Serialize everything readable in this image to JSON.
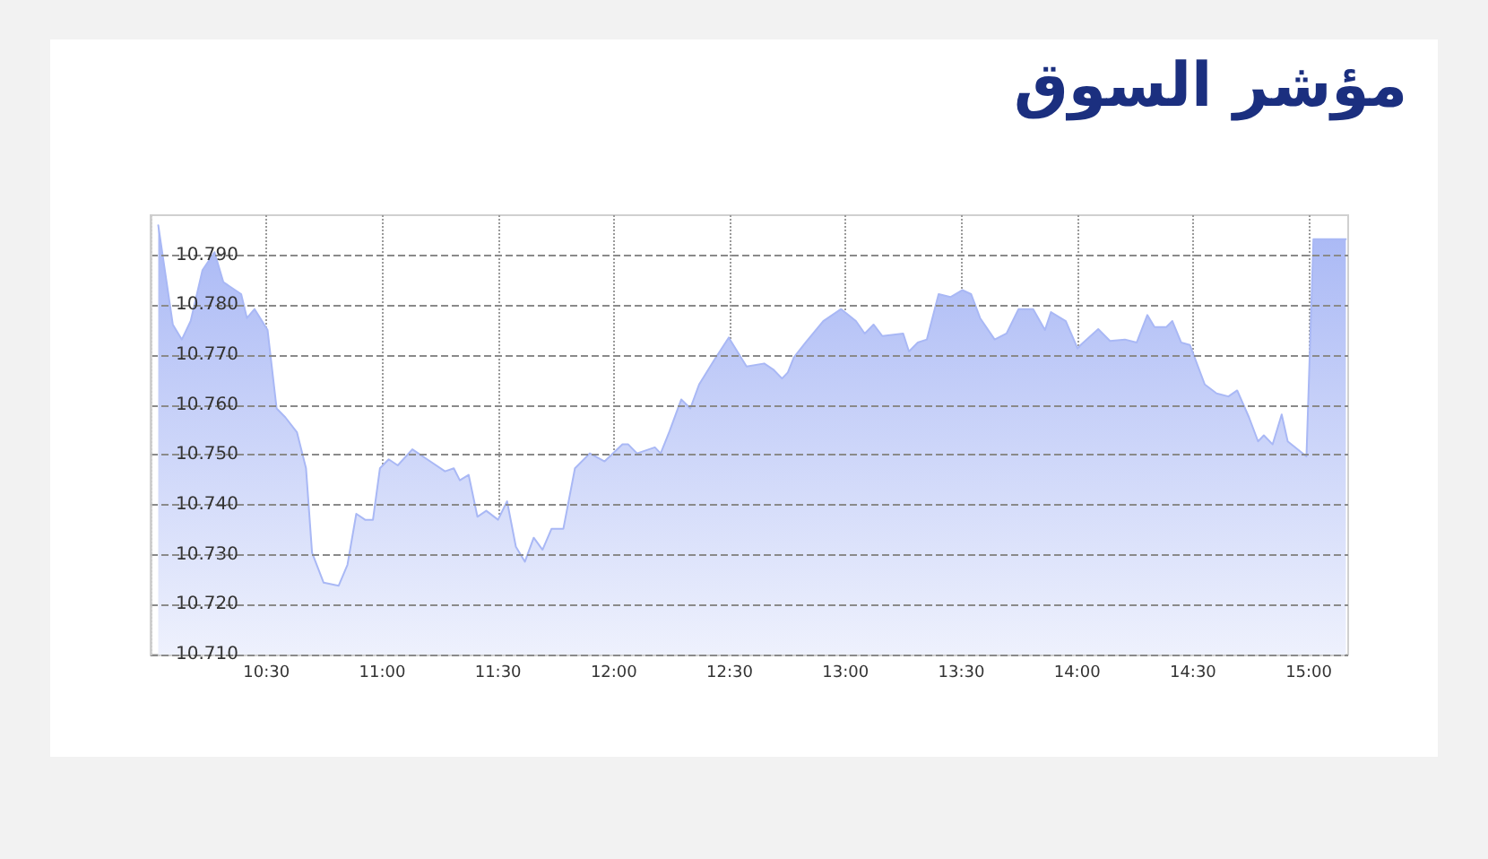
{
  "chart_data": {
    "type": "area",
    "title": "مؤشر السوق",
    "x": [
      10.033,
      10.096,
      10.135,
      10.173,
      10.224,
      10.276,
      10.314,
      10.391,
      10.416,
      10.449,
      10.505,
      10.544,
      10.582,
      10.632,
      10.671,
      10.697,
      10.747,
      10.812,
      10.85,
      10.888,
      10.926,
      10.96,
      10.99,
      11.028,
      11.067,
      11.13,
      11.194,
      11.271,
      11.309,
      11.335,
      11.373,
      11.411,
      11.449,
      11.5,
      11.539,
      11.577,
      11.616,
      11.654,
      11.692,
      11.731,
      11.782,
      11.832,
      11.896,
      11.96,
      12.037,
      12.062,
      12.1,
      12.177,
      12.202,
      12.24,
      12.291,
      12.33,
      12.368,
      12.432,
      12.496,
      12.573,
      12.649,
      12.688,
      12.726,
      12.751,
      12.777,
      12.828,
      12.904,
      12.981,
      13.045,
      13.083,
      13.121,
      13.159,
      13.249,
      13.274,
      13.312,
      13.351,
      13.402,
      13.453,
      13.504,
      13.542,
      13.581,
      13.644,
      13.695,
      13.747,
      13.81,
      13.861,
      13.887,
      13.951,
      14.002,
      14.015,
      14.091,
      14.142,
      14.206,
      14.257,
      14.303,
      14.334,
      14.385,
      14.411,
      14.449,
      14.487,
      14.551,
      14.602,
      14.653,
      14.691,
      14.742,
      14.781,
      14.806,
      14.844,
      14.883,
      14.909,
      14.99,
      15.02,
      15.16
    ],
    "series": [
      {
        "color": "#a9b8f5",
        "values": [
          10.796,
          10.7761,
          10.7731,
          10.7768,
          10.787,
          10.7906,
          10.7846,
          10.7822,
          10.7774,
          10.7792,
          10.775,
          10.7593,
          10.7575,
          10.7545,
          10.7473,
          10.7304,
          10.7244,
          10.7238,
          10.728,
          10.7382,
          10.737,
          10.737,
          10.7473,
          10.7491,
          10.7479,
          10.7511,
          10.7491,
          10.7467,
          10.7473,
          10.7449,
          10.746,
          10.7376,
          10.7388,
          10.737,
          10.7407,
          10.7316,
          10.7286,
          10.7334,
          10.731,
          10.7352,
          10.7352,
          10.7473,
          10.7503,
          10.7487,
          10.7521,
          10.7521,
          10.7503,
          10.7515,
          10.7503,
          10.7547,
          10.7611,
          10.7593,
          10.7641,
          10.7689,
          10.7735,
          10.7677,
          10.7683,
          10.7671,
          10.7653,
          10.7665,
          10.7695,
          10.7725,
          10.7768,
          10.7792,
          10.7768,
          10.7743,
          10.7761,
          10.7738,
          10.7743,
          10.7707,
          10.7725,
          10.7731,
          10.7822,
          10.7816,
          10.783,
          10.7822,
          10.7774,
          10.7731,
          10.7743,
          10.7792,
          10.7792,
          10.775,
          10.7786,
          10.7768,
          10.7713,
          10.772,
          10.7752,
          10.7728,
          10.7731,
          10.7725,
          10.778,
          10.7756,
          10.7756,
          10.7768,
          10.7725,
          10.772,
          10.7641,
          10.7623,
          10.7617,
          10.7629,
          10.7575,
          10.7527,
          10.7539,
          10.7521,
          10.7581,
          10.7527,
          10.7497,
          10.7932,
          10.7932
        ]
      }
    ],
    "xlim": [
      10.0,
      15.17
    ],
    "xticks": [
      {
        "value": 10.5,
        "label": "10:30"
      },
      {
        "value": 11,
        "label": "11:00"
      },
      {
        "value": 11.5,
        "label": "11:30"
      },
      {
        "value": 12,
        "label": "12:00"
      },
      {
        "value": 12.5,
        "label": "12:30"
      },
      {
        "value": 13,
        "label": "13:00"
      },
      {
        "value": 13.5,
        "label": "13:30"
      },
      {
        "value": 14,
        "label": "14:00"
      },
      {
        "value": 14.5,
        "label": "14:30"
      },
      {
        "value": 15,
        "label": "15:00"
      }
    ],
    "ylim": [
      10.71,
      10.798
    ],
    "yticks": [
      {
        "value": 10.71,
        "label": "10.710"
      },
      {
        "value": 10.72,
        "label": "10.720"
      },
      {
        "value": 10.73,
        "label": "10.730"
      },
      {
        "value": 10.74,
        "label": "10.740"
      },
      {
        "value": 10.75,
        "label": "10.750"
      },
      {
        "value": 10.76,
        "label": "10.760"
      },
      {
        "value": 10.77,
        "label": "10.770"
      },
      {
        "value": 10.78,
        "label": "10.780"
      },
      {
        "value": 10.79,
        "label": "10.790"
      }
    ],
    "grid": true,
    "marker": "none",
    "line_style": "solid"
  }
}
